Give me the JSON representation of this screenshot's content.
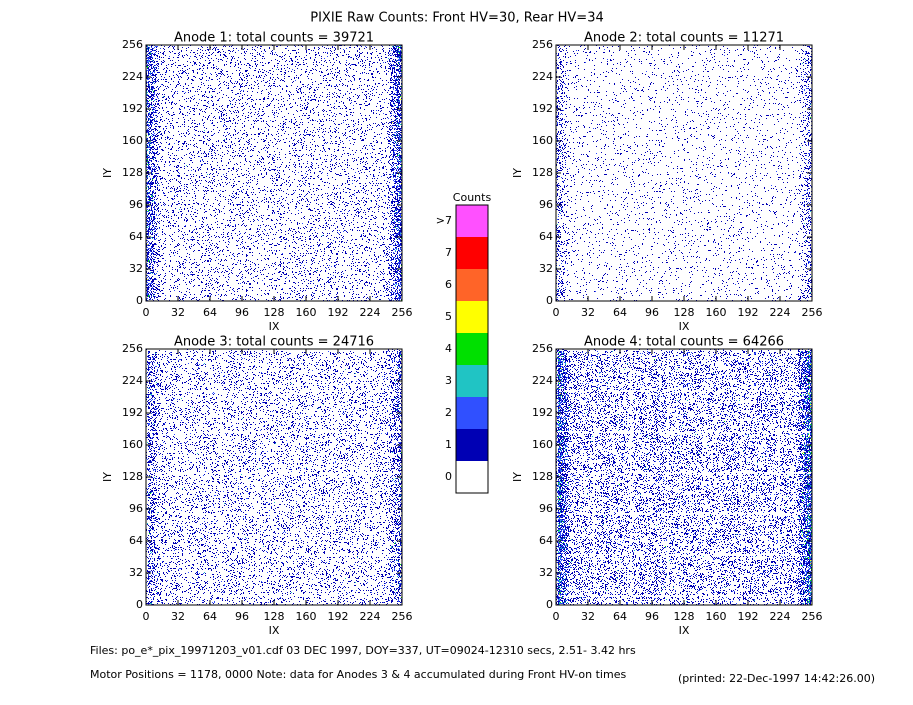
{
  "title": "PIXIE Raw Counts:  Front HV=30, Rear HV=34",
  "panels": [
    {
      "title": "Anode 1: total counts = 39721",
      "xlabel": "IX",
      "ylabel": "IY",
      "xlim": [
        0,
        256
      ],
      "ylim": [
        0,
        256
      ],
      "xticks": [
        0,
        32,
        64,
        96,
        128,
        160,
        192,
        224,
        256
      ],
      "yticks": [
        0,
        32,
        64,
        96,
        128,
        160,
        192,
        224,
        256
      ]
    },
    {
      "title": "Anode 2: total counts = 11271",
      "xlabel": "IX",
      "ylabel": "IY",
      "xlim": [
        0,
        256
      ],
      "ylim": [
        0,
        256
      ],
      "xticks": [
        0,
        32,
        64,
        96,
        128,
        160,
        192,
        224,
        256
      ],
      "yticks": [
        0,
        32,
        64,
        96,
        128,
        160,
        192,
        224,
        256
      ]
    },
    {
      "title": "Anode 3: total counts = 24716",
      "xlabel": "IX",
      "ylabel": "IY",
      "xlim": [
        0,
        256
      ],
      "ylim": [
        0,
        256
      ],
      "xticks": [
        0,
        32,
        64,
        96,
        128,
        160,
        192,
        224,
        256
      ],
      "yticks": [
        0,
        32,
        64,
        96,
        128,
        160,
        192,
        224,
        256
      ]
    },
    {
      "title": "Anode 4: total counts = 64266",
      "xlabel": "IX",
      "ylabel": "IY",
      "xlim": [
        0,
        256
      ],
      "ylim": [
        0,
        256
      ],
      "xticks": [
        0,
        32,
        64,
        96,
        128,
        160,
        192,
        224,
        256
      ],
      "yticks": [
        0,
        32,
        64,
        96,
        128,
        160,
        192,
        224,
        256
      ]
    }
  ],
  "colorbar": {
    "title": "Counts",
    "levels": [
      {
        "label": "0",
        "color": "#ffffff"
      },
      {
        "label": "1",
        "color": "#0000b4"
      },
      {
        "label": "2",
        "color": "#3050ff"
      },
      {
        "label": "3",
        "color": "#20c4c4"
      },
      {
        "label": "4",
        "color": "#00e000"
      },
      {
        "label": "5",
        "color": "#ffff00"
      },
      {
        "label": "6",
        "color": "#ff6428"
      },
      {
        "label": "7",
        "color": "#ff0000"
      },
      {
        "label": ">7",
        "color": "#ff50ff"
      }
    ]
  },
  "footer": {
    "files": "Files: po_e*_pix_19971203_v01.cdf    03 DEC 1997, DOY=337, UT=09024-12310 secs,  2.51- 3.42 hrs",
    "motor": "Motor Positions = 1178, 0000   Note: data for Anodes 3 & 4 accumulated during Front HV-on times",
    "printed": "(printed: 22-Dec-1997 14:42:26.00)"
  }
}
